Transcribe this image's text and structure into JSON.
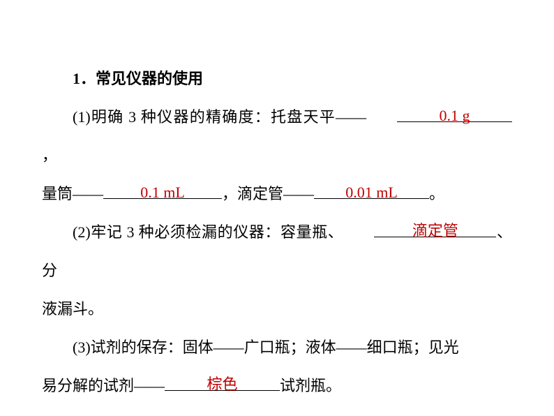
{
  "title": "1．常见仪器的使用",
  "item1": {
    "prefix": "(1)明确 3 种仪器的精确度：托盘天平——",
    "answer1": "0.1 g",
    "blank1_width": 165,
    "comma1": "，",
    "line2_prefix": "量筒——",
    "answer2": "0.1 mL",
    "blank2_width": 170,
    "mid": "，滴定管——",
    "answer3": "0.01 mL",
    "blank3_width": 165,
    "suffix": "。"
  },
  "item2": {
    "prefix": "(2)牢记 3 种必须检漏的仪器：容量瓶、",
    "answer": "滴定管",
    "blank_width": 175,
    "suffix1": "、分",
    "line2": "液漏斗。"
  },
  "item3": {
    "line1": "(3)试剂的保存：固体——广口瓶；液体——细口瓶；见光",
    "line2_prefix": "易分解的试剂——",
    "answer": "棕色",
    "blank_width": 165,
    "suffix": "试剂瓶。"
  },
  "colors": {
    "text": "#000000",
    "answer": "#c00000",
    "background": "#ffffff"
  }
}
